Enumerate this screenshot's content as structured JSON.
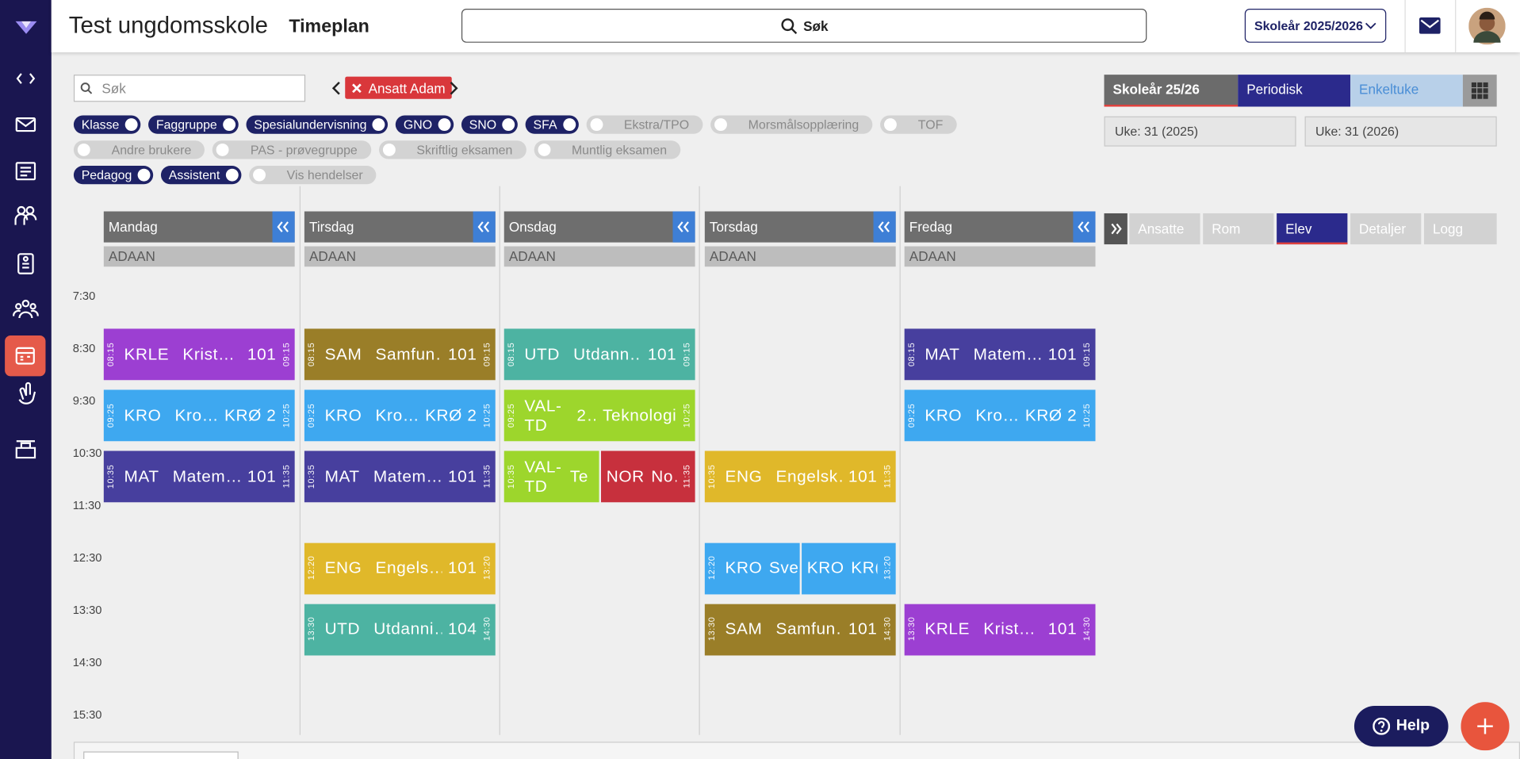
{
  "header": {
    "school": "Test ungdomsskole",
    "page": "Timeplan",
    "search": "Søk",
    "year": "Skoleår 2025/2026"
  },
  "toolbar": {
    "search_placeholder": "Søk",
    "filter_chip": "Ansatt Adam"
  },
  "toggles": [
    [
      {
        "label": "Klasse",
        "on": true
      },
      {
        "label": "Faggruppe",
        "on": true
      },
      {
        "label": "Spesialundervisning",
        "on": true
      },
      {
        "label": "GNO",
        "on": true
      },
      {
        "label": "SNO",
        "on": true
      },
      {
        "label": "SFA",
        "on": true
      },
      {
        "label": "Ekstra/TPO",
        "on": false
      },
      {
        "label": "Morsmålsopplæring",
        "on": false
      },
      {
        "label": "TOF",
        "on": false
      }
    ],
    [
      {
        "label": "Andre brukere",
        "on": false
      },
      {
        "label": "PAS - prøvegruppe",
        "on": false
      },
      {
        "label": "Skriftlig eksamen",
        "on": false
      },
      {
        "label": "Muntlig eksamen",
        "on": false
      }
    ],
    [
      {
        "label": "Pedagog",
        "on": true
      },
      {
        "label": "Assistent",
        "on": true
      },
      {
        "label": "Vis hendelser",
        "on": false
      }
    ]
  ],
  "view_tabs": [
    "Skoleår 25/26",
    "Periodisk",
    "Enkeltuke"
  ],
  "week_fields": [
    "Uke: 31 (2025)",
    "Uke: 31 (2026)"
  ],
  "panel_tabs": [
    "Ansatte",
    "Rom",
    "Elev",
    "Detaljer",
    "Logg"
  ],
  "times": [
    "7:30",
    "8:30",
    "9:30",
    "10:30",
    "11:30",
    "12:30",
    "13:30",
    "14:30",
    "15:30"
  ],
  "days": [
    {
      "name": "Mandag",
      "sub": "ADAAN",
      "lessons": [
        {
          "start": "08:15",
          "code": "KRLE",
          "name": "Krist…",
          "room": "101",
          "end": "09:15",
          "color": "#9c3fd2"
        },
        {
          "start": "09:25",
          "code": "KRO",
          "name": "Kro…",
          "room": "KRØ 2",
          "end": "10:25",
          "color": "#3ea8f0"
        },
        {
          "start": "10:35",
          "code": "MAT",
          "name": "Matem…",
          "room": "101",
          "end": "11:35",
          "color": "#473f9e"
        }
      ]
    },
    {
      "name": "Tirsdag",
      "sub": "ADAAN",
      "lessons": [
        {
          "start": "08:15",
          "code": "SAM",
          "name": "Samfun…",
          "room": "101",
          "end": "09:15",
          "color": "#9a7e28"
        },
        {
          "start": "09:25",
          "code": "KRO",
          "name": "Kro…",
          "room": "KRØ 2",
          "end": "10:25",
          "color": "#3ea8f0"
        },
        {
          "start": "10:35",
          "code": "MAT",
          "name": "Matem…",
          "room": "101",
          "end": "11:35",
          "color": "#473f9e"
        },
        {
          "start": "12:20",
          "code": "ENG",
          "name": "Engels…",
          "room": "101",
          "end": "13:20",
          "color": "#e0b82a"
        },
        {
          "start": "13:30",
          "code": "UTD",
          "name": "Utdanni…",
          "room": "104",
          "end": "14:30",
          "color": "#4db3a2"
        }
      ]
    },
    {
      "name": "Onsdag",
      "sub": "ADAAN",
      "lessons": [
        {
          "start": "08:15",
          "code": "UTD",
          "name": "Utdann…",
          "room": "101",
          "end": "09:15",
          "color": "#4db3a2"
        },
        {
          "start": "09:25",
          "code": "VAL-TD",
          "name": "2…",
          "room": "Teknologi",
          "end": "10:25",
          "color": "#9dd62c"
        },
        {
          "start": "10:35",
          "code": "VAL-TD",
          "name": "Te",
          "color": "#9dd62c"
        },
        {
          "code": "NOR",
          "name": "No…",
          "end": "11:35",
          "color": "#c7303d"
        }
      ]
    },
    {
      "name": "Torsdag",
      "sub": "ADAAN",
      "lessons": [
        {
          "start": "10:35",
          "code": "ENG",
          "name": "Engelsk…",
          "room": "101",
          "end": "11:35",
          "color": "#e0b82a"
        },
        {
          "start": "12:20",
          "code": "KRO",
          "name": "Sve",
          "color": "#3ea8f0"
        },
        {
          "code": "KRO",
          "name": "KR(",
          "end": "13:20",
          "color": "#3ea8f0"
        },
        {
          "start": "13:30",
          "code": "SAM",
          "name": "Samfun…",
          "room": "101",
          "end": "14:30",
          "color": "#9a7e28"
        }
      ]
    },
    {
      "name": "Fredag",
      "sub": "ADAAN",
      "lessons": [
        {
          "start": "08:15",
          "code": "MAT",
          "name": "Matem…",
          "room": "101",
          "end": "09:15",
          "color": "#473f9e"
        },
        {
          "start": "09:25",
          "code": "KRO",
          "name": "Kro…",
          "room": "KRØ 2",
          "end": "10:25",
          "color": "#3ea8f0"
        },
        {
          "start": "13:30",
          "code": "KRLE",
          "name": "Krist…",
          "room": "101",
          "end": "14:30",
          "color": "#9c3fd2"
        }
      ]
    }
  ],
  "help": "Help"
}
